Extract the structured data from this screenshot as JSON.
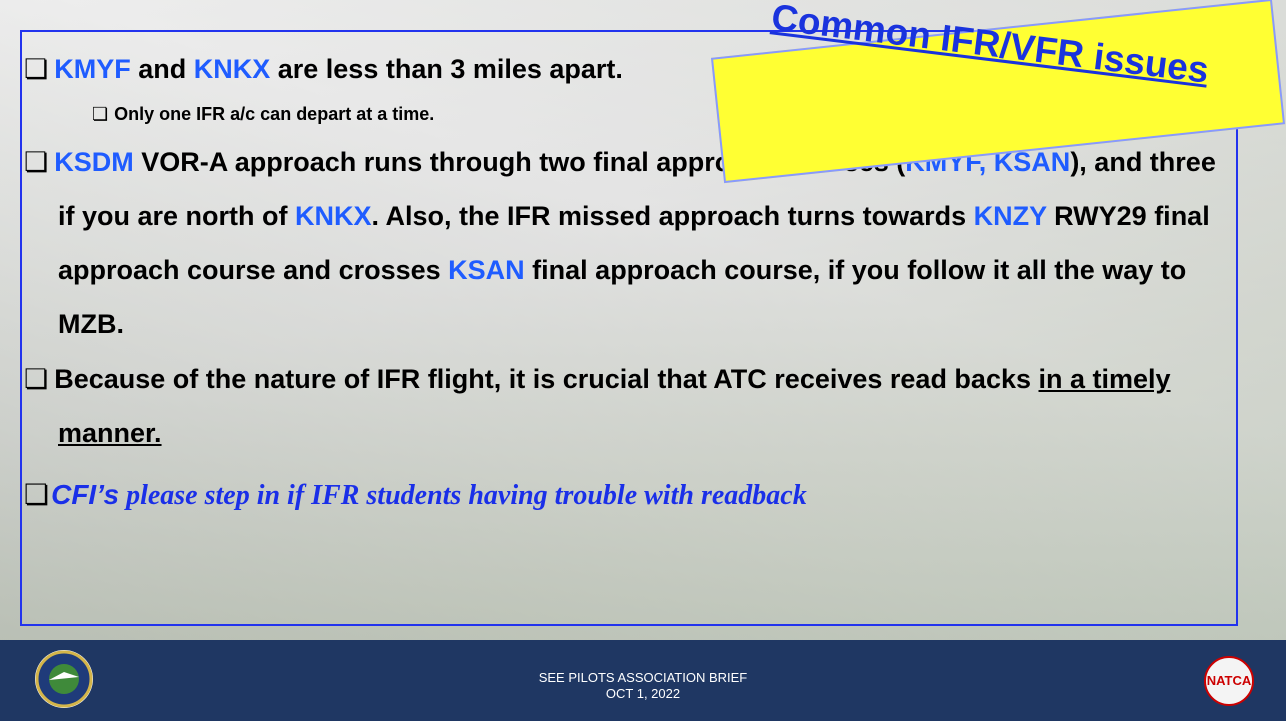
{
  "callout": "Common IFR/VFR issues",
  "bullets": [
    {
      "level": 1,
      "runs": [
        {
          "text": "KMYF",
          "color": "#1f5cff"
        },
        {
          "text": " and "
        },
        {
          "text": "KNKX",
          "color": "#1f5cff"
        },
        {
          "text": " are less than 3 miles apart."
        }
      ]
    },
    {
      "level": 2,
      "runs": [
        {
          "text": "Only one IFR a/c can depart at a time."
        }
      ]
    },
    {
      "level": 1,
      "runs": [
        {
          "text": "KSDM",
          "color": "#1f5cff"
        },
        {
          "text": " VOR-A approach runs through two final approach courses ("
        },
        {
          "text": "KMYF, KSAN",
          "color": "#1f5cff"
        },
        {
          "text": "), and three if you are north of "
        },
        {
          "text": "KNKX",
          "color": "#1f5cff"
        },
        {
          "text": ". Also, the IFR missed approach turns towards "
        },
        {
          "text": "KNZY",
          "color": "#1f5cff"
        },
        {
          "text": " RWY29 final approach course and crosses "
        },
        {
          "text": "KSAN",
          "color": "#1f5cff"
        },
        {
          "text": " final approach course, if you follow it all the way to MZB."
        }
      ]
    },
    {
      "level": 1,
      "runs": [
        {
          "text": "Because of the nature of IFR flight, it is crucial that ATC receives read backs "
        },
        {
          "text": "in a timely manner.",
          "underline": true
        }
      ]
    },
    {
      "level": 1,
      "style": "italic",
      "runs": [
        {
          "text": "CFI’s",
          "color": "#1a2fe8",
          "sans": true
        },
        {
          "text": " please step in if IFR students having trouble with readback",
          "color": "#1a2fe8"
        }
      ]
    }
  ],
  "footer": {
    "line1": "SEE PILOTS ASSOCIATION BRIEF",
    "line2": "OCT 1, 2022"
  },
  "logos": {
    "right": "NATCA"
  }
}
